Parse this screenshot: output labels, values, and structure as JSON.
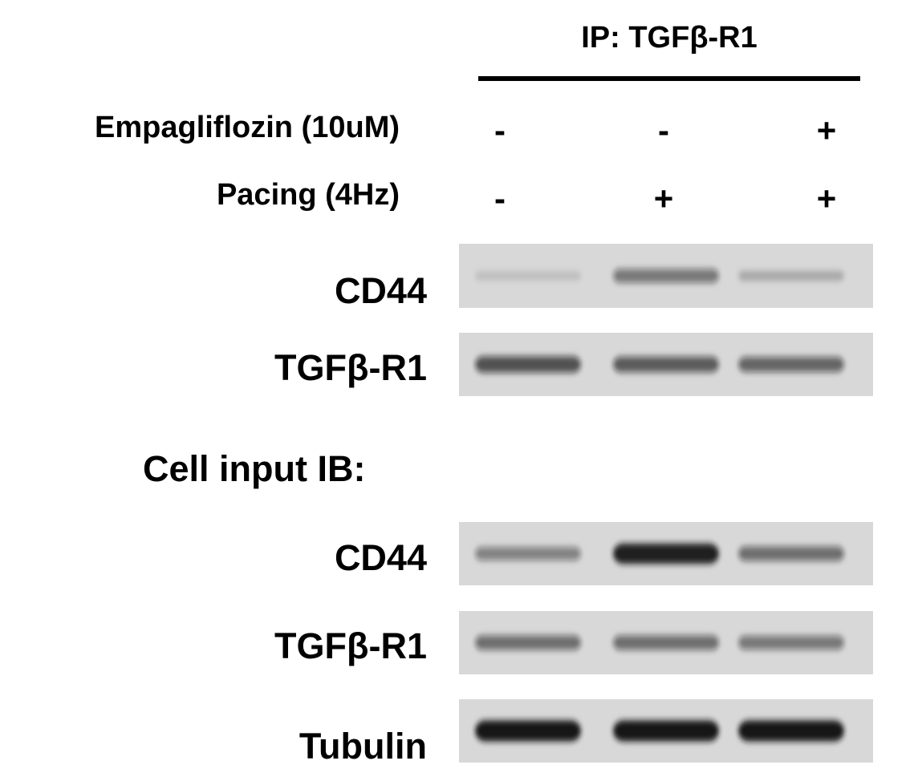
{
  "figure": {
    "ip_header": "IP: TGFβ-R1",
    "section_label": "Cell input IB:",
    "conditions": [
      {
        "label": "Empagliflozin (10uM)",
        "values": [
          "-",
          "-",
          "+"
        ]
      },
      {
        "label": "Pacing (4Hz)",
        "values": [
          "-",
          "+",
          "+"
        ]
      }
    ],
    "ip_blots": [
      {
        "label": "CD44",
        "band_intensity": [
          0.05,
          0.45,
          0.15
        ]
      },
      {
        "label": "TGFβ-R1",
        "band_intensity": [
          0.65,
          0.6,
          0.55
        ]
      }
    ],
    "input_blots": [
      {
        "label": "CD44",
        "band_intensity": [
          0.4,
          0.95,
          0.5
        ]
      },
      {
        "label": "TGFβ-R1",
        "band_intensity": [
          0.5,
          0.5,
          0.45
        ]
      },
      {
        "label": "Tubulin",
        "band_intensity": [
          1.0,
          1.0,
          1.0
        ]
      }
    ],
    "colors": {
      "background": "#ffffff",
      "text": "#000000",
      "membrane": "#d8d8d8",
      "band": "#141414"
    }
  }
}
